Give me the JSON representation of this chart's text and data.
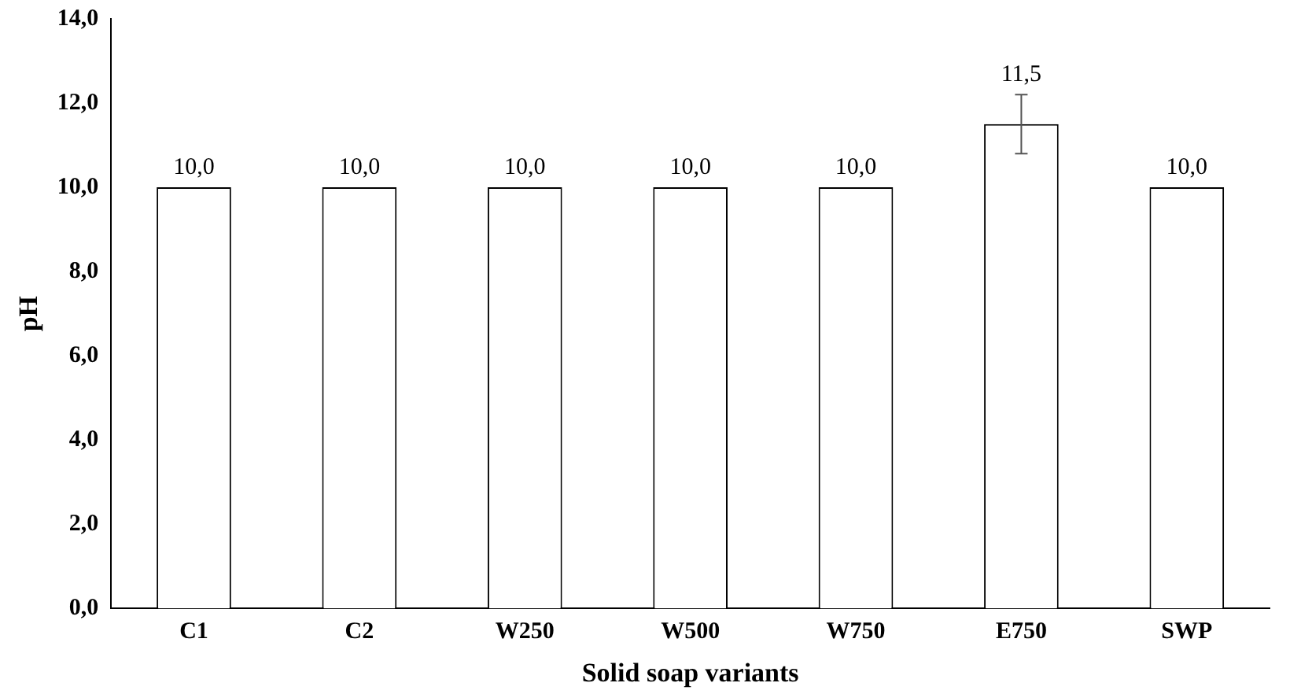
{
  "chart_data": {
    "type": "bar",
    "xlabel": "Solid soap variants",
    "ylabel": "pH",
    "categories": [
      "C1",
      "C2",
      "W250",
      "W500",
      "W750",
      "E750",
      "SWP"
    ],
    "values": [
      10.0,
      10.0,
      10.0,
      10.0,
      10.0,
      11.5,
      10.0
    ],
    "value_labels": [
      "10,0",
      "10,0",
      "10,0",
      "10,0",
      "10,0",
      "11,5",
      "10,0"
    ],
    "errors": [
      null,
      null,
      null,
      null,
      null,
      0.7,
      null
    ],
    "color": "#ffffff",
    "ylim": [
      0,
      14
    ],
    "yticks": [
      {
        "value": 0,
        "label": "0,0"
      },
      {
        "value": 2,
        "label": "2,0"
      },
      {
        "value": 4,
        "label": "4,0"
      },
      {
        "value": 6,
        "label": "6,0"
      },
      {
        "value": 8,
        "label": "8,0"
      },
      {
        "value": 10,
        "label": "10,0"
      },
      {
        "value": 12,
        "label": "12,0"
      },
      {
        "value": 14,
        "label": "14,0"
      }
    ],
    "grid": false,
    "legend": false
  }
}
